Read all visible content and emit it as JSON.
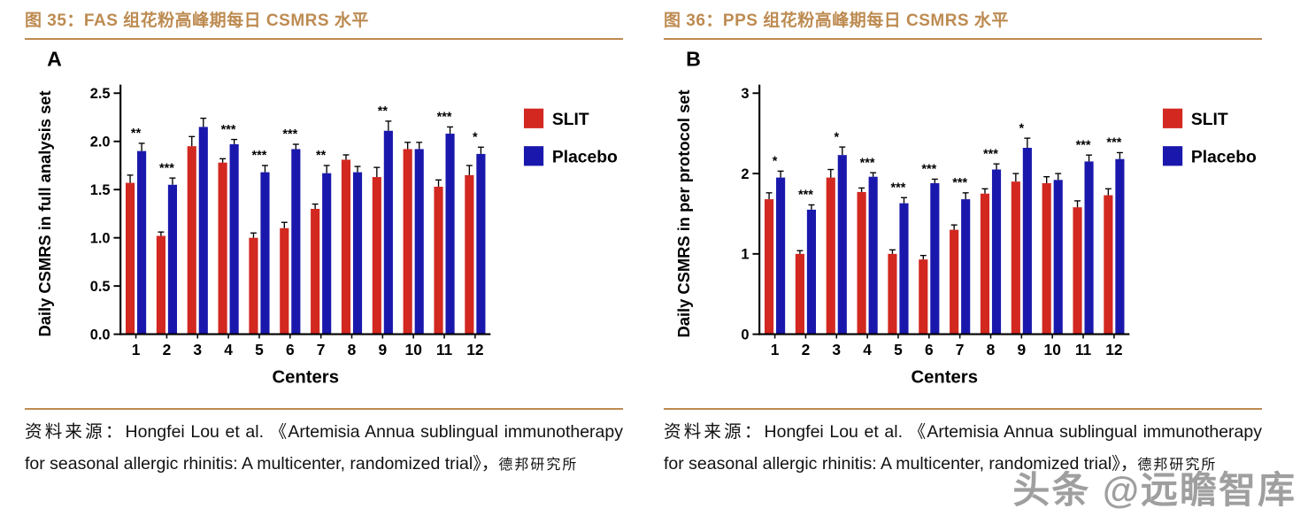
{
  "page": {
    "watermark": "头条 @远瞻智库"
  },
  "colors": {
    "accent": "#bd8b51",
    "slit_red": "#d22820",
    "placebo_blue": "#1a18ac",
    "axis_black": "#000000"
  },
  "figures": [
    {
      "title": "图 35：FAS 组花粉高峰期每日 CSMRS 水平",
      "source_prefix": "资料来源：",
      "source_body": "Hongfei Lou et al. 《Artemisia Annua sublingual immunotherapy for seasonal allergic rhinitis: A multicenter, randomized trial》，",
      "source_suffix": "德邦研究所"
    },
    {
      "title": "图 36：PPS 组花粉高峰期每日 CSMRS 水平",
      "source_prefix": "资料来源：",
      "source_body": "Hongfei Lou et al. 《Artemisia Annua sublingual immunotherapy for seasonal allergic rhinitis: A multicenter, randomized trial》，",
      "source_suffix": "德邦研究所"
    }
  ],
  "chart_data": [
    {
      "type": "bar",
      "panel_label": "A",
      "title": "",
      "ylabel": "Daily CSMRS in full analysis set",
      "xlabel": "Centers",
      "ylim": [
        0,
        2.5
      ],
      "yticks": [
        0,
        0.5,
        1.0,
        1.5,
        2.0,
        2.5
      ],
      "ytick_labels": [
        "0.0",
        "0.5",
        "1.0",
        "1.5",
        "2.0",
        "2.5"
      ],
      "categories": [
        "1",
        "2",
        "3",
        "4",
        "5",
        "6",
        "7",
        "8",
        "9",
        "10",
        "11",
        "12"
      ],
      "series": [
        {
          "name": "SLIT",
          "color": "#d22820",
          "values": [
            1.57,
            1.02,
            1.95,
            1.78,
            1.0,
            1.1,
            1.3,
            1.81,
            1.63,
            1.92,
            1.53,
            1.65
          ],
          "errors": [
            0.08,
            0.04,
            0.1,
            0.04,
            0.05,
            0.06,
            0.05,
            0.05,
            0.1,
            0.07,
            0.07,
            0.1
          ]
        },
        {
          "name": "Placebo",
          "color": "#1a18ac",
          "values": [
            1.9,
            1.55,
            2.15,
            1.97,
            1.68,
            1.92,
            1.67,
            1.68,
            2.11,
            1.92,
            2.08,
            1.87
          ],
          "errors": [
            0.08,
            0.07,
            0.09,
            0.05,
            0.07,
            0.05,
            0.08,
            0.06,
            0.1,
            0.07,
            0.07,
            0.07
          ]
        }
      ],
      "significance": [
        "**",
        "***",
        "",
        "***",
        "***",
        "***",
        "**",
        "",
        "**",
        "",
        "***",
        "*"
      ],
      "legend_position": "right",
      "grid": false
    },
    {
      "type": "bar",
      "panel_label": "B",
      "title": "",
      "ylabel": "Daily CSMRS in per protocol set",
      "xlabel": "Centers",
      "ylim": [
        0,
        3
      ],
      "yticks": [
        0,
        1,
        2,
        3
      ],
      "ytick_labels": [
        "0",
        "1",
        "2",
        "3"
      ],
      "categories": [
        "1",
        "2",
        "3",
        "4",
        "5",
        "6",
        "7",
        "8",
        "9",
        "10",
        "11",
        "12"
      ],
      "series": [
        {
          "name": "SLIT",
          "color": "#d22820",
          "values": [
            1.68,
            1.0,
            1.95,
            1.77,
            1.0,
            0.93,
            1.3,
            1.75,
            1.9,
            1.88,
            1.58,
            1.73
          ],
          "errors": [
            0.08,
            0.04,
            0.1,
            0.05,
            0.05,
            0.05,
            0.06,
            0.06,
            0.1,
            0.08,
            0.08,
            0.08
          ]
        },
        {
          "name": "Placebo",
          "color": "#1a18ac",
          "values": [
            1.95,
            1.55,
            2.23,
            1.96,
            1.63,
            1.88,
            1.68,
            2.05,
            2.32,
            1.92,
            2.15,
            2.18
          ],
          "errors": [
            0.08,
            0.06,
            0.1,
            0.05,
            0.07,
            0.05,
            0.08,
            0.07,
            0.12,
            0.08,
            0.08,
            0.08
          ]
        }
      ],
      "significance": [
        "*",
        "***",
        "*",
        "***",
        "***",
        "***",
        "***",
        "***",
        "*",
        "",
        "***",
        "***"
      ],
      "legend_position": "right",
      "grid": false
    }
  ]
}
